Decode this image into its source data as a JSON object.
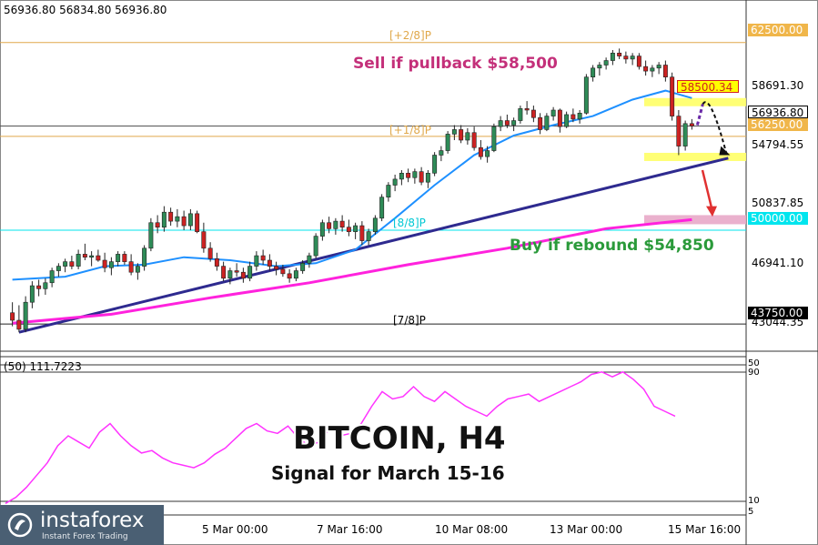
{
  "header": {
    "ohlc": "56936.80 56834.80 56936.80"
  },
  "indicator": {
    "label": "(50) 111.7223",
    "scale_top": "50",
    "scale_mid": "90",
    "scale_low": "10",
    "scale_bottom": "5"
  },
  "annotations": {
    "title": "BITCOIN, H4",
    "subtitle": "Signal for March 15-16",
    "sell": "Sell if pullback $58,500",
    "buy": "Buy if rebound $54,850"
  },
  "brand": {
    "name": "instaforex",
    "tagline": "Instant Forex Trading"
  },
  "murray_levels": [
    {
      "label": "[+2/8]P",
      "value": 62500
    },
    {
      "label": "[+1/8]P",
      "value": 56250
    },
    {
      "label": "[8/8]P",
      "value": 50000
    },
    {
      "label": "[7/8]P",
      "value": 43750
    }
  ],
  "price_axis": {
    "ticks": [
      "58691.30",
      "54794.55",
      "50837.85",
      "46941.10",
      "43044.35"
    ],
    "boxes": [
      {
        "text": "62500.00",
        "bg": "#f0b64a",
        "fg": "#ffffff"
      },
      {
        "text": "58500.34",
        "bg": "#ffff00",
        "fg": "#d21f1f"
      },
      {
        "text": "56936.80",
        "bg": "#ffffff",
        "fg": "#000000"
      },
      {
        "text": "56250.00",
        "bg": "#f0b64a",
        "fg": "#ffffff"
      },
      {
        "text": "50000.00",
        "bg": "#00e5ee",
        "fg": "#ffffff"
      },
      {
        "text": "43750.00",
        "bg": "#000000",
        "fg": "#ffffff"
      }
    ]
  },
  "time_axis": {
    "ticks": [
      "5 Mar 00:00",
      "7 Mar 16:00",
      "10 Mar 08:00",
      "13 Mar 00:00",
      "15 Mar 16:00"
    ]
  },
  "colors": {
    "bull": "#2e8b57",
    "bear": "#cc2222",
    "ma_fast": "#1e90ff",
    "ma_slow": "#ff22dd",
    "trendline": "#2e2a8f",
    "murray_gold": "#e0a84a",
    "murray_cyan": "#00e5ee",
    "rsi": "#ff33ff"
  },
  "chart_data": {
    "type": "candlestick",
    "timeframe": "H4",
    "ylim": [
      42000,
      64000
    ],
    "candles": [
      [
        44500,
        45200,
        43600,
        44000
      ],
      [
        44000,
        45000,
        43200,
        43400
      ],
      [
        43400,
        45600,
        43200,
        45200
      ],
      [
        45200,
        46600,
        44800,
        46300
      ],
      [
        46300,
        46700,
        45600,
        46100
      ],
      [
        46100,
        46800,
        45700,
        46500
      ],
      [
        46500,
        47500,
        46200,
        47300
      ],
      [
        47300,
        47800,
        46900,
        47600
      ],
      [
        47600,
        48100,
        47200,
        47900
      ],
      [
        47900,
        48300,
        47400,
        47600
      ],
      [
        47600,
        48700,
        47400,
        48400
      ],
      [
        48400,
        49100,
        48000,
        48200
      ],
      [
        48200,
        48600,
        47600,
        48300
      ],
      [
        48300,
        48700,
        47900,
        48000
      ],
      [
        48000,
        48500,
        47200,
        47500
      ],
      [
        47500,
        48200,
        47000,
        47900
      ],
      [
        47900,
        48600,
        47600,
        48400
      ],
      [
        48400,
        48600,
        47700,
        47900
      ],
      [
        47900,
        48400,
        47000,
        47200
      ],
      [
        47200,
        47800,
        46700,
        47600
      ],
      [
        47600,
        49000,
        47300,
        48800
      ],
      [
        48800,
        50800,
        48600,
        50500
      ],
      [
        50500,
        51000,
        49800,
        50200
      ],
      [
        50200,
        51600,
        49900,
        51200
      ],
      [
        51200,
        51500,
        50300,
        50600
      ],
      [
        50600,
        51400,
        50200,
        50900
      ],
      [
        50900,
        51300,
        50000,
        50300
      ],
      [
        50300,
        51400,
        50000,
        51100
      ],
      [
        51100,
        51300,
        49800,
        49900
      ],
      [
        49900,
        50500,
        48500,
        48800
      ],
      [
        48800,
        49200,
        47900,
        48100
      ],
      [
        48100,
        48500,
        47300,
        47600
      ],
      [
        47600,
        47900,
        46600,
        46800
      ],
      [
        46800,
        47500,
        46400,
        47300
      ],
      [
        47300,
        47800,
        46900,
        47200
      ],
      [
        47200,
        47500,
        46500,
        46800
      ],
      [
        46800,
        47900,
        46600,
        47600
      ],
      [
        47600,
        48600,
        47300,
        48300
      ],
      [
        48300,
        48700,
        47700,
        48000
      ],
      [
        48000,
        48400,
        47300,
        47600
      ],
      [
        47600,
        47900,
        47000,
        47400
      ],
      [
        47400,
        47700,
        46900,
        47100
      ],
      [
        47100,
        47400,
        46500,
        46800
      ],
      [
        46800,
        47500,
        46600,
        47300
      ],
      [
        47300,
        48000,
        47100,
        47800
      ],
      [
        47800,
        48500,
        47500,
        48300
      ],
      [
        48300,
        49800,
        48100,
        49600
      ],
      [
        49600,
        50700,
        49300,
        50500
      ],
      [
        50500,
        50900,
        49800,
        50100
      ],
      [
        50100,
        50800,
        49700,
        50600
      ],
      [
        50600,
        51000,
        49900,
        50200
      ],
      [
        50200,
        50700,
        49600,
        49900
      ],
      [
        49900,
        50500,
        49400,
        50300
      ],
      [
        50300,
        50600,
        49000,
        49300
      ],
      [
        49300,
        50100,
        49000,
        49900
      ],
      [
        49900,
        51000,
        49700,
        50800
      ],
      [
        50800,
        52400,
        50600,
        52200
      ],
      [
        52200,
        53200,
        51900,
        53000
      ],
      [
        53000,
        53700,
        52600,
        53400
      ],
      [
        53400,
        54000,
        53000,
        53800
      ],
      [
        53800,
        54100,
        53200,
        53500
      ],
      [
        53500,
        54100,
        53100,
        53900
      ],
      [
        53900,
        54200,
        53000,
        53200
      ],
      [
        53200,
        54000,
        52800,
        53800
      ],
      [
        53800,
        55200,
        53600,
        55000
      ],
      [
        55000,
        55600,
        54600,
        55300
      ],
      [
        55300,
        56600,
        55100,
        56400
      ],
      [
        56400,
        57000,
        56000,
        56700
      ],
      [
        56700,
        57000,
        55800,
        56000
      ],
      [
        56000,
        56800,
        55700,
        56500
      ],
      [
        56500,
        56900,
        55300,
        55500
      ],
      [
        55500,
        56000,
        54700,
        54900
      ],
      [
        54900,
        55600,
        54500,
        55300
      ],
      [
        55300,
        57100,
        55200,
        56900
      ],
      [
        56900,
        57600,
        56600,
        57300
      ],
      [
        57300,
        57700,
        56800,
        57000
      ],
      [
        57000,
        57500,
        56600,
        57300
      ],
      [
        57300,
        58300,
        57100,
        58100
      ],
      [
        58100,
        58600,
        57700,
        58000
      ],
      [
        58000,
        58300,
        57200,
        57500
      ],
      [
        57500,
        57800,
        56400,
        56700
      ],
      [
        56700,
        57800,
        56600,
        57600
      ],
      [
        57600,
        58200,
        57300,
        58000
      ],
      [
        58000,
        58100,
        56500,
        56900
      ],
      [
        56900,
        57900,
        56800,
        57700
      ],
      [
        57700,
        58100,
        57200,
        57400
      ],
      [
        57400,
        58000,
        57100,
        57800
      ],
      [
        57800,
        60400,
        57700,
        60200
      ],
      [
        60200,
        61000,
        59900,
        60800
      ],
      [
        60800,
        61200,
        60300,
        61000
      ],
      [
        61000,
        61500,
        60700,
        61300
      ],
      [
        61300,
        62000,
        61000,
        61800
      ],
      [
        61800,
        62100,
        61400,
        61600
      ],
      [
        61600,
        61900,
        61100,
        61400
      ],
      [
        61400,
        61800,
        61000,
        61600
      ],
      [
        61600,
        61800,
        60700,
        60900
      ],
      [
        60900,
        61300,
        60300,
        60600
      ],
      [
        60600,
        61000,
        60200,
        60800
      ],
      [
        60800,
        61200,
        60400,
        61000
      ],
      [
        61000,
        61300,
        59900,
        60200
      ],
      [
        60200,
        60500,
        57300,
        57600
      ],
      [
        57600,
        58000,
        55000,
        55600
      ],
      [
        55600,
        57300,
        55300,
        57100
      ],
      [
        57100,
        57400,
        56700,
        56937
      ]
    ],
    "ma_fast": [
      [
        0,
        46700
      ],
      [
        8,
        46900
      ],
      [
        14,
        47600
      ],
      [
        20,
        47700
      ],
      [
        26,
        48200
      ],
      [
        33,
        48000
      ],
      [
        40,
        47600
      ],
      [
        46,
        47800
      ],
      [
        52,
        48700
      ],
      [
        58,
        50800
      ],
      [
        64,
        53000
      ],
      [
        70,
        55000
      ],
      [
        76,
        56300
      ],
      [
        82,
        57000
      ],
      [
        88,
        57600
      ],
      [
        94,
        58700
      ],
      [
        99,
        59300
      ],
      [
        103,
        58800
      ]
    ],
    "ma_slow": [
      [
        0,
        43800
      ],
      [
        15,
        44400
      ],
      [
        30,
        45500
      ],
      [
        45,
        46500
      ],
      [
        60,
        47700
      ],
      [
        75,
        48800
      ],
      [
        90,
        50100
      ],
      [
        103,
        50700
      ]
    ],
    "rsi": {
      "label": "(50) 111.7223",
      "values": [
        5,
        10,
        18,
        28,
        38,
        52,
        60,
        55,
        50,
        63,
        70,
        60,
        52,
        46,
        48,
        42,
        38,
        36,
        34,
        38,
        45,
        50,
        58,
        66,
        70,
        64,
        62,
        68,
        58,
        52,
        55,
        66,
        60,
        62,
        70,
        84,
        96,
        90,
        92,
        100,
        92,
        88,
        96,
        90,
        84,
        80,
        76,
        84,
        90,
        92,
        94,
        88,
        92,
        96,
        100,
        104,
        110,
        112,
        108,
        112,
        106,
        98,
        84,
        80,
        76
      ]
    }
  }
}
